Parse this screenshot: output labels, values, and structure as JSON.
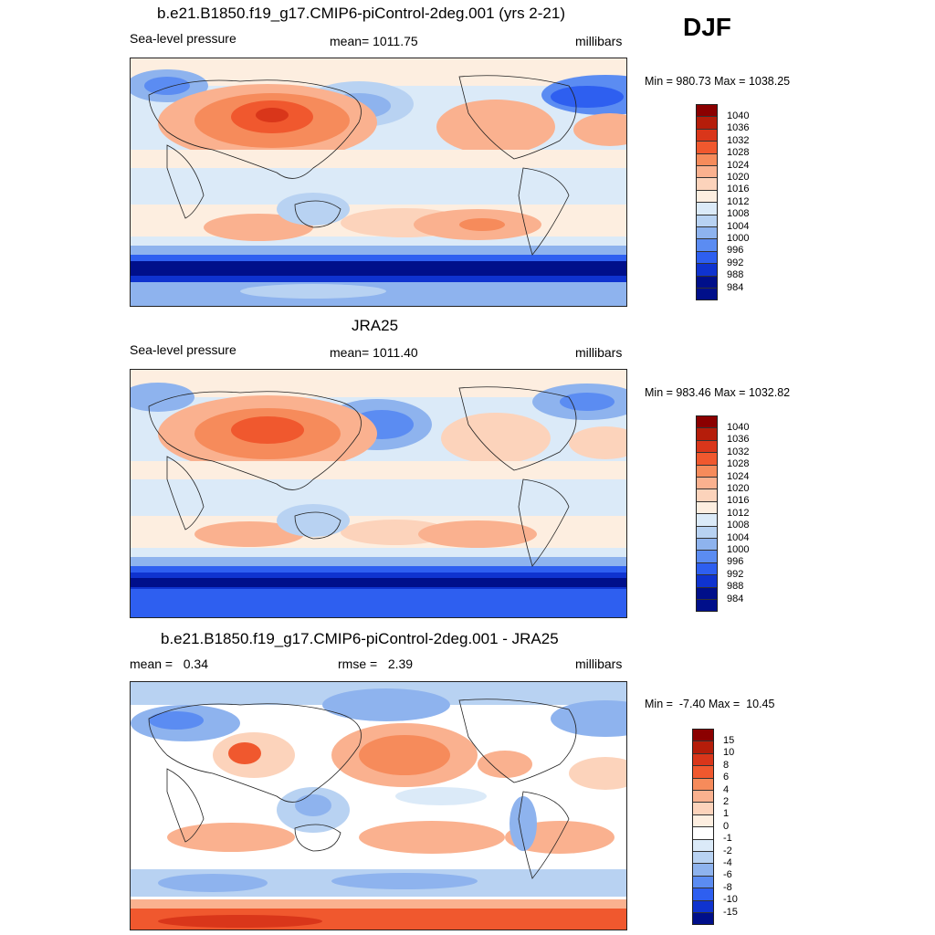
{
  "season": "DJF",
  "panels": [
    {
      "id": "model",
      "title": "b.e21.B1850.f19_g17.CMIP6-piControl-2deg.001 (yrs 2-21)",
      "left_label": "Sea-level pressure",
      "center_label": "mean= 1011.75",
      "right_label": "millibars",
      "minmax": "Min = 980.73 Max = 1038.25",
      "colorbar_labels": [
        "1040",
        "1036",
        "1032",
        "1028",
        "1024",
        "1020",
        "1016",
        "1012",
        "1008",
        "1004",
        "1000",
        "996",
        "992",
        "988",
        "984"
      ],
      "colorbar_colors": [
        "#8b0000",
        "#b51d0a",
        "#d9361a",
        "#f0582e",
        "#f68b5b",
        "#fab18f",
        "#fcd3bb",
        "#fdeee0",
        "#dbeaf8",
        "#b8d2f2",
        "#8eb3ee",
        "#5b8cf2",
        "#2e5ff0",
        "#0f33cf",
        "#000f8a"
      ]
    },
    {
      "id": "obs",
      "title": "JRA25",
      "left_label": "Sea-level pressure",
      "center_label": "mean= 1011.40",
      "right_label": "millibars",
      "minmax": "Min = 983.46 Max = 1032.82",
      "colorbar_labels": [
        "1040",
        "1036",
        "1032",
        "1028",
        "1024",
        "1020",
        "1016",
        "1012",
        "1008",
        "1004",
        "1000",
        "996",
        "992",
        "988",
        "984"
      ],
      "colorbar_colors": [
        "#8b0000",
        "#b51d0a",
        "#d9361a",
        "#f0582e",
        "#f68b5b",
        "#fab18f",
        "#fcd3bb",
        "#fdeee0",
        "#dbeaf8",
        "#b8d2f2",
        "#8eb3ee",
        "#5b8cf2",
        "#2e5ff0",
        "#0f33cf",
        "#000f8a"
      ]
    },
    {
      "id": "diff",
      "title": "b.e21.B1850.f19_g17.CMIP6-piControl-2deg.001 - JRA25",
      "left_label": "mean =   0.34",
      "center_label": "rmse =   2.39",
      "right_label": "millibars",
      "minmax": "Min =  -7.40 Max =  10.45",
      "colorbar_labels": [
        "15",
        "10",
        "8",
        "6",
        "4",
        "2",
        "1",
        "0",
        "-1",
        "-2",
        "-4",
        "-6",
        "-8",
        "-10",
        "-15"
      ],
      "colorbar_colors": [
        "#8b0000",
        "#b51d0a",
        "#d9361a",
        "#f0582e",
        "#f68b5b",
        "#fab18f",
        "#fcd3bb",
        "#fdeee0",
        "#ffffff",
        "#dbeaf8",
        "#b8d2f2",
        "#8eb3ee",
        "#5b8cf2",
        "#2e5ff0",
        "#0f33cf",
        "#000f8a"
      ]
    }
  ]
}
